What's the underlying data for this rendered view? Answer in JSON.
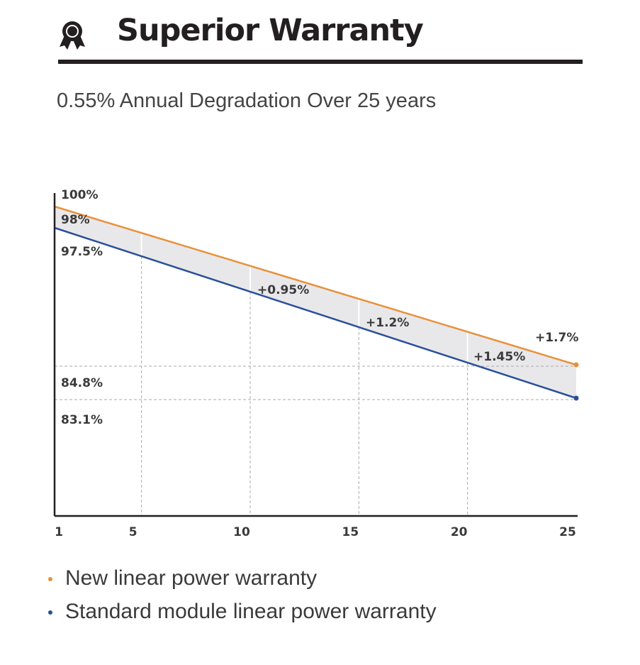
{
  "header": {
    "title": "Superior Warranty",
    "icon": "award-ribbon-icon"
  },
  "subtitle": "0.55% Annual Degradation Over 25 years",
  "chart_data": {
    "type": "line",
    "title": "0.55% Annual Degradation Over 25 years",
    "x_ticks": [
      "1",
      "5",
      "10",
      "15",
      "20",
      "25"
    ],
    "xlim": [
      1,
      25
    ],
    "y_labels": [
      "100%",
      "98%",
      "97.5%",
      "84.8%",
      "83.1%"
    ],
    "series": [
      {
        "name": "New linear power warranty",
        "color": "#e8913a",
        "x": [
          1,
          25
        ],
        "values": [
          98,
          84.8
        ]
      },
      {
        "name": "Standard module linear power warranty",
        "color": "#2a4f9a",
        "x": [
          1,
          25
        ],
        "values": [
          97.5,
          83.1
        ]
      }
    ],
    "annotations": [
      {
        "x": 10,
        "text": "+0.95%"
      },
      {
        "x": 15,
        "text": "+1.2%"
      },
      {
        "x": 20,
        "text": "+1.45%"
      },
      {
        "x": 25,
        "text": "+1.7%"
      }
    ],
    "fill_color": "#e8e8ea",
    "grid": "dashed"
  },
  "legend": [
    {
      "label": "New linear power warranty",
      "color": "#e8913a"
    },
    {
      "label": "Standard module linear power warranty",
      "color": "#2a4f9a"
    }
  ]
}
